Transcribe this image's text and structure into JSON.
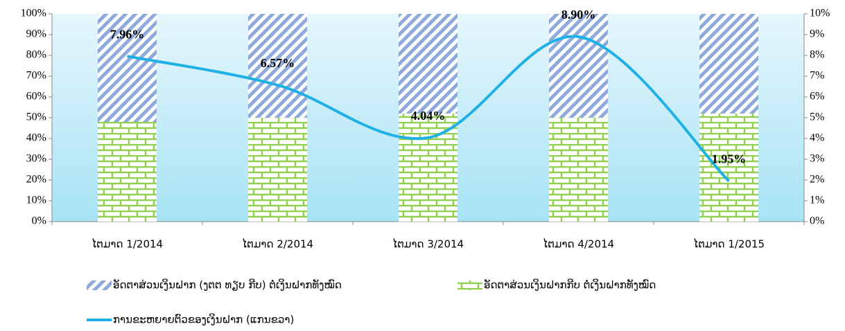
{
  "chart_data": {
    "type": "bar",
    "categories": [
      "ໄຕມາດ 1/2014",
      "ໄຕມາດ 2/2014",
      "ໄຕມາດ 3/2014",
      "ໄຕມາດ 4/2014",
      "ໄຕມາດ 1/2015"
    ],
    "series": [
      {
        "name": "ອັດຕາສ່ວນເງິນຝາກ (ງຕຕ ທຽບ ກີບ) ຕໍ່ເງິນຝາກທັງໝົດ",
        "color": "#8eaadb",
        "type": "bar",
        "values": [
          52,
          50,
          48,
          50,
          48
        ]
      },
      {
        "name": "ອັດຕາສ່ວນເງິນຝາກກີບ ຕໍ່ເງິນຝາກທັງໝົດ",
        "color": "#92d050",
        "type": "bar",
        "values": [
          48,
          50,
          52,
          50,
          52
        ]
      },
      {
        "name": "ການຂະຫຍາຍຕົວຂອງເງິນຝາກ (ແກນຂວາ)",
        "color": "#1fb1e6",
        "type": "line",
        "axis": "y2",
        "values": [
          7.96,
          6.57,
          4.04,
          8.9,
          1.95
        ],
        "value_labels": [
          "7.96%",
          "6.57%",
          "4.04%",
          "8.90%",
          "1.95%"
        ]
      }
    ],
    "ylim": [
      0,
      100
    ],
    "yticks": [
      {
        "value": 0,
        "label": "0%"
      },
      {
        "value": 10,
        "label": "10%"
      },
      {
        "value": 20,
        "label": "20%"
      },
      {
        "value": 30,
        "label": "30%"
      },
      {
        "value": 40,
        "label": "40%"
      },
      {
        "value": 50,
        "label": "50%"
      },
      {
        "value": 60,
        "label": "60%"
      },
      {
        "value": 70,
        "label": "70%"
      },
      {
        "value": 80,
        "label": "80%"
      },
      {
        "value": 90,
        "label": "90%"
      },
      {
        "value": 100,
        "label": "100%"
      }
    ],
    "y2lim": [
      0,
      10
    ],
    "y2ticks": [
      {
        "value": 0,
        "label": "0%"
      },
      {
        "value": 1,
        "label": "1%"
      },
      {
        "value": 2,
        "label": "2%"
      },
      {
        "value": 3,
        "label": "3%"
      },
      {
        "value": 4,
        "label": "4%"
      },
      {
        "value": 5,
        "label": "5%"
      },
      {
        "value": 6,
        "label": "6%"
      },
      {
        "value": 7,
        "label": "7%"
      },
      {
        "value": 8,
        "label": "8%"
      },
      {
        "value": 9,
        "label": "9%"
      },
      {
        "value": 10,
        "label": "10%"
      }
    ],
    "legend": "bottom"
  }
}
